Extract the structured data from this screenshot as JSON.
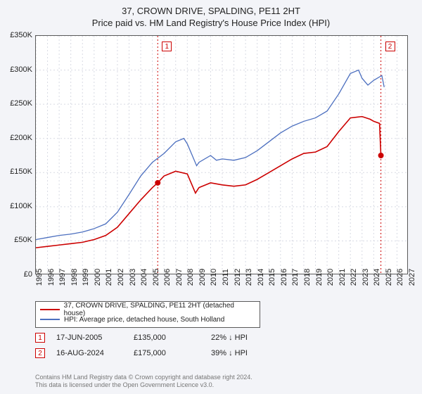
{
  "titles": {
    "line1": "37, CROWN DRIVE, SPALDING, PE11 2HT",
    "line2": "Price paid vs. HM Land Registry's House Price Index (HPI)"
  },
  "chart": {
    "type": "line",
    "background_color": "#ffffff",
    "panel_color": "#f3f4f8",
    "border_color": "#5a5a5a",
    "grid_color": "#d8dae3",
    "grid_dash": "2,3",
    "xlim": [
      1995,
      2027
    ],
    "ylim": [
      0,
      350000
    ],
    "ytick_step": 50000,
    "yticks": [
      "£0",
      "£50K",
      "£100K",
      "£150K",
      "£200K",
      "£250K",
      "£300K",
      "£350K"
    ],
    "xticks": [
      1995,
      1996,
      1997,
      1998,
      1999,
      2000,
      2001,
      2002,
      2003,
      2004,
      2005,
      2006,
      2007,
      2008,
      2009,
      2010,
      2011,
      2012,
      2013,
      2014,
      2015,
      2016,
      2017,
      2018,
      2019,
      2020,
      2021,
      2022,
      2023,
      2024,
      2025,
      2026,
      2027
    ],
    "series": [
      {
        "name": "red",
        "label": "37, CROWN DRIVE, SPALDING, PE11 2HT (detached house)",
        "color": "#cc0000",
        "line_width": 1.6,
        "data": [
          [
            1995,
            40000
          ],
          [
            1996,
            42000
          ],
          [
            1997,
            44000
          ],
          [
            1998,
            46000
          ],
          [
            1999,
            48000
          ],
          [
            2000,
            52000
          ],
          [
            2001,
            58000
          ],
          [
            2002,
            70000
          ],
          [
            2003,
            90000
          ],
          [
            2004,
            110000
          ],
          [
            2005,
            128000
          ],
          [
            2005.46,
            135000
          ],
          [
            2006,
            145000
          ],
          [
            2007,
            152000
          ],
          [
            2008,
            148000
          ],
          [
            2008.7,
            120000
          ],
          [
            2009,
            128000
          ],
          [
            2010,
            135000
          ],
          [
            2011,
            132000
          ],
          [
            2012,
            130000
          ],
          [
            2013,
            132000
          ],
          [
            2014,
            140000
          ],
          [
            2015,
            150000
          ],
          [
            2016,
            160000
          ],
          [
            2017,
            170000
          ],
          [
            2018,
            178000
          ],
          [
            2019,
            180000
          ],
          [
            2020,
            188000
          ],
          [
            2021,
            210000
          ],
          [
            2022,
            230000
          ],
          [
            2023,
            232000
          ],
          [
            2023.7,
            228000
          ],
          [
            2024,
            225000
          ],
          [
            2024.5,
            222000
          ],
          [
            2024.62,
            175000
          ]
        ]
      },
      {
        "name": "blue",
        "label": "HPI: Average price, detached house, South Holland",
        "color": "#4c6fbf",
        "line_width": 1.3,
        "data": [
          [
            1995,
            52000
          ],
          [
            1996,
            55000
          ],
          [
            1997,
            58000
          ],
          [
            1998,
            60000
          ],
          [
            1999,
            63000
          ],
          [
            2000,
            68000
          ],
          [
            2001,
            75000
          ],
          [
            2002,
            92000
          ],
          [
            2003,
            118000
          ],
          [
            2004,
            145000
          ],
          [
            2005,
            165000
          ],
          [
            2006,
            178000
          ],
          [
            2007,
            195000
          ],
          [
            2007.7,
            200000
          ],
          [
            2008,
            192000
          ],
          [
            2008.8,
            160000
          ],
          [
            2009,
            165000
          ],
          [
            2010,
            175000
          ],
          [
            2010.5,
            168000
          ],
          [
            2011,
            170000
          ],
          [
            2012,
            168000
          ],
          [
            2013,
            172000
          ],
          [
            2014,
            182000
          ],
          [
            2015,
            195000
          ],
          [
            2016,
            208000
          ],
          [
            2017,
            218000
          ],
          [
            2018,
            225000
          ],
          [
            2019,
            230000
          ],
          [
            2020,
            240000
          ],
          [
            2021,
            265000
          ],
          [
            2022,
            295000
          ],
          [
            2022.7,
            300000
          ],
          [
            2023,
            288000
          ],
          [
            2023.5,
            278000
          ],
          [
            2024,
            285000
          ],
          [
            2024.7,
            292000
          ],
          [
            2024.9,
            275000
          ]
        ]
      }
    ],
    "markers": [
      {
        "id": "1",
        "x": 2005.46,
        "y": 135000,
        "vline_color": "#cc0000",
        "vline_dash": "2,3",
        "box_x_offset": 6,
        "box_y": 8
      },
      {
        "id": "2",
        "x": 2024.62,
        "y": 175000,
        "vline_color": "#cc0000",
        "vline_dash": "2,3",
        "box_x_offset": 6,
        "box_y": 8
      }
    ]
  },
  "legend": {
    "rows": [
      {
        "color": "#cc0000",
        "label": "37, CROWN DRIVE, SPALDING, PE11 2HT (detached house)"
      },
      {
        "color": "#4c6fbf",
        "label": "HPI: Average price, detached house, South Holland"
      }
    ]
  },
  "events": [
    {
      "marker": "1",
      "date": "17-JUN-2005",
      "price": "£135,000",
      "diff": "22% ↓ HPI"
    },
    {
      "marker": "2",
      "date": "16-AUG-2024",
      "price": "£175,000",
      "diff": "39% ↓ HPI"
    }
  ],
  "footer": {
    "line1": "Contains HM Land Registry data © Crown copyright and database right 2024.",
    "line2": "This data is licensed under the Open Government Licence v3.0."
  },
  "style": {
    "label_fontsize": 11,
    "title_fontsize": 13,
    "legend_fontsize": 10,
    "footer_color": "#777777"
  }
}
